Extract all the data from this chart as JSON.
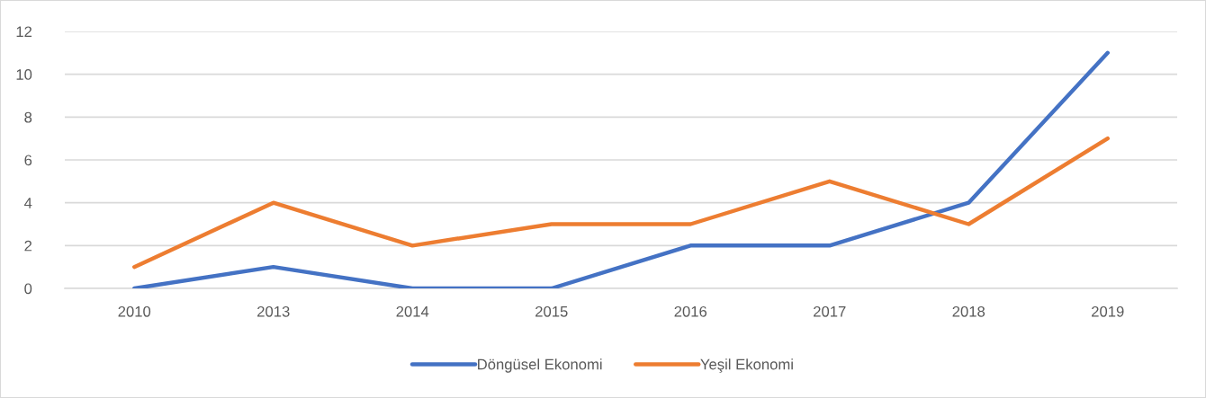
{
  "chart_data": {
    "type": "line",
    "categories": [
      "2010",
      "2013",
      "2014",
      "2015",
      "2016",
      "2017",
      "2018",
      "2019"
    ],
    "series": [
      {
        "name": "Döngüsel Ekonomi",
        "color": "#4472c4",
        "values": [
          0,
          1,
          0,
          0,
          2,
          2,
          4,
          11
        ]
      },
      {
        "name": "Yeşil Ekonomi",
        "color": "#ed7d31",
        "values": [
          1,
          4,
          2,
          3,
          3,
          5,
          3,
          7
        ]
      }
    ],
    "ylim": [
      0,
      12
    ],
    "yticks": [
      0,
      2,
      4,
      6,
      8,
      10,
      12
    ],
    "grid": "y",
    "legend": "bottom",
    "marker": "none",
    "line_style": "solid"
  }
}
